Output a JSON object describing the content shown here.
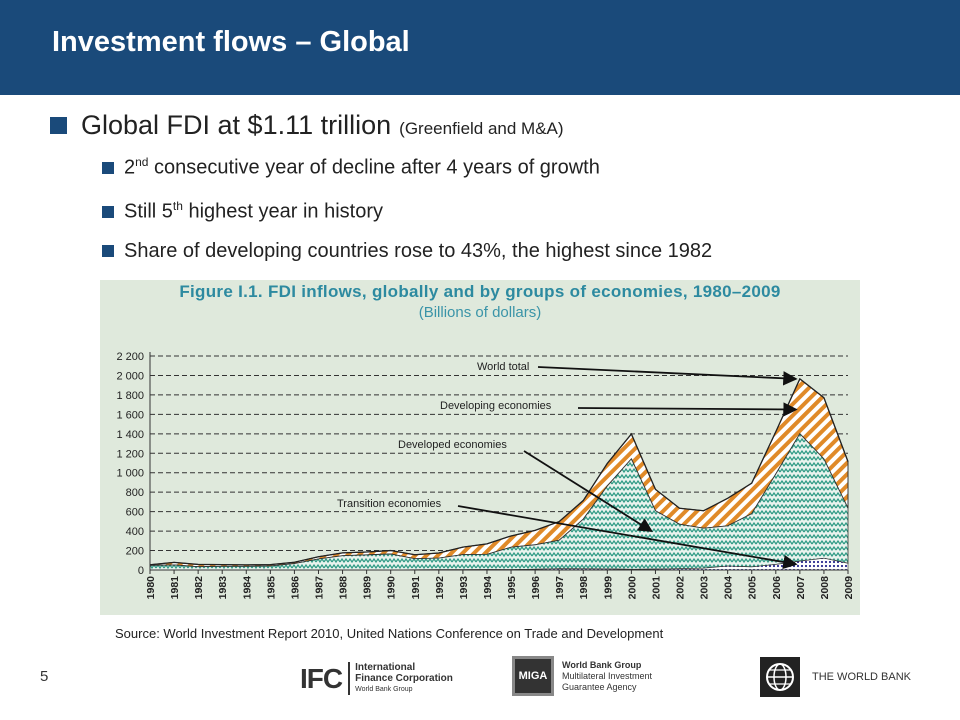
{
  "header": {
    "title": "Investment flows – Global"
  },
  "bullets": {
    "main": "Global FDI at $1.11 trillion",
    "main_paren": "(Greenfield and M&A)",
    "sub1_pre": "2",
    "sub1_sup": "nd",
    "sub1_post": " consecutive year of decline after 4 years of growth",
    "sub2_pre": "Still 5",
    "sub2_sup": "th",
    "sub2_post": " highest year in history",
    "sub3": "Share of developing countries rose to 43%, the highest since 1982"
  },
  "chart_data": {
    "type": "area",
    "title": "Figure I.1. FDI inflows, globally and by groups of economies, 1980–2009",
    "subtitle": "(Billions of dollars)",
    "x": [
      "1980",
      "1981",
      "1982",
      "1983",
      "1984",
      "1985",
      "1986",
      "1987",
      "1988",
      "1989",
      "1990",
      "1991",
      "1992",
      "1993",
      "1994",
      "1995",
      "1996",
      "1997",
      "1998",
      "1999",
      "2000",
      "2001",
      "2002",
      "2003",
      "2004",
      "2005",
      "2006",
      "2007",
      "2008",
      "2009"
    ],
    "yticks": [
      "0",
      "200",
      "400",
      "600",
      "800",
      "1 000",
      "1 200",
      "1 400",
      "1 600",
      "1 800",
      "2 000",
      "2 200"
    ],
    "ylim": [
      0,
      2200
    ],
    "grid": true,
    "series": [
      {
        "name": "Transition economies",
        "values": [
          0,
          0,
          0,
          0,
          0,
          0,
          0,
          0,
          0,
          0,
          0,
          2,
          3,
          3,
          5,
          4,
          8,
          13,
          12,
          11,
          7,
          10,
          13,
          19,
          40,
          32,
          57,
          91,
          121,
          69
        ]
      },
      {
        "name": "Developed economies",
        "values": [
          47,
          52,
          34,
          37,
          37,
          41,
          66,
          113,
          147,
          155,
          165,
          114,
          119,
          155,
          156,
          230,
          251,
          293,
          510,
          853,
          1135,
          599,
          458,
          410,
          414,
          547,
          930,
          1310,
          1020,
          566
        ]
      },
      {
        "name": "Developing economies",
        "values": [
          7,
          26,
          23,
          18,
          16,
          14,
          14,
          23,
          29,
          30,
          35,
          41,
          53,
          77,
          108,
          116,
          148,
          192,
          192,
          232,
          256,
          220,
          164,
          180,
          283,
          314,
          434,
          564,
          630,
          478
        ]
      },
      {
        "name": "World total",
        "values": [
          54,
          78,
          57,
          55,
          53,
          55,
          80,
          136,
          176,
          185,
          200,
          157,
          175,
          235,
          269,
          350,
          407,
          498,
          714,
          1096,
          1398,
          829,
          635,
          609,
          737,
          893,
          1421,
          1965,
          1771,
          1114
        ]
      }
    ],
    "annotations": [
      "World total",
      "Developing economies",
      "Developed economies",
      "Transition economies"
    ]
  },
  "source": "Source: World Investment Report 2010, United Nations Conference on Trade and Development",
  "page_number": "5",
  "footer": {
    "ifc_mark": "IFC",
    "ifc_line1": "International",
    "ifc_line2": "Finance Corporation",
    "ifc_line3": "World Bank Group",
    "miga_mark": "MIGA",
    "miga_title": "World Bank Group",
    "miga_line1": "Multilateral Investment",
    "miga_line2": "Guarantee Agency",
    "wb_label": "THE WORLD BANK"
  },
  "colors": {
    "header_bg": "#1a4a7a",
    "developing": "#e08a28",
    "developed": "#2e9a84",
    "transition": "#2a2a90",
    "chart_bg": "#dfe9dc",
    "title_teal": "#2d8aa0"
  }
}
